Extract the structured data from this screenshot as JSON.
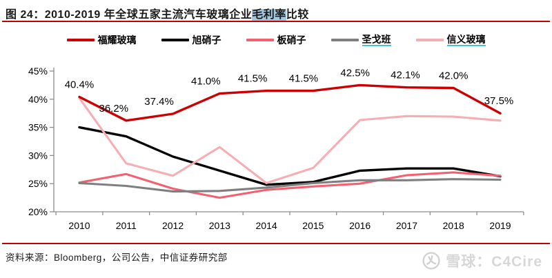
{
  "header": {
    "title_prefix": "图 24：2010-2019 年全球五家主流汽车玻璃企业",
    "title_highlight": "毛利率",
    "title_suffix": "比较",
    "rule_color": "#c30000",
    "highlight_color": "#a2c7e0"
  },
  "legend": {
    "items": [
      {
        "label": "福耀玻璃",
        "color": "#cc0000",
        "underline": false
      },
      {
        "label": "旭硝子",
        "color": "#000000",
        "underline": false
      },
      {
        "label": "板硝子",
        "color": "#f4606f",
        "underline": false
      },
      {
        "label": "圣戈班",
        "color": "#7f7f7f",
        "underline": true
      },
      {
        "label": "信义玻璃",
        "color": "#f7aeb2",
        "underline": true
      }
    ],
    "underline_color": "#47c2d4"
  },
  "chart_data": {
    "type": "line",
    "title": "2010-2019 年全球五家主流汽车玻璃企业毛利率比较",
    "categories": [
      "2010",
      "2011",
      "2012",
      "2013",
      "2014",
      "2015",
      "2016",
      "2017",
      "2018",
      "2019"
    ],
    "series": [
      {
        "name": "旭硝子",
        "color": "#000000",
        "stroke_width": 3.4,
        "values": [
          35.0,
          33.4,
          29.8,
          27.3,
          24.8,
          25.3,
          27.3,
          27.7,
          27.7,
          26.3
        ]
      },
      {
        "name": "板硝子",
        "color": "#f4606f",
        "stroke_width": 3.1,
        "values": [
          25.2,
          26.7,
          24.1,
          22.5,
          23.9,
          24.5,
          25.0,
          26.5,
          27.0,
          26.4
        ]
      },
      {
        "name": "圣戈班",
        "color": "#7f7f7f",
        "stroke_width": 3.1,
        "values": [
          25.1,
          24.6,
          23.6,
          23.7,
          24.3,
          25.1,
          25.6,
          25.6,
          25.8,
          25.7
        ]
      },
      {
        "name": "信义玻璃",
        "color": "#f7aeb2",
        "stroke_width": 3.1,
        "values": [
          40.2,
          28.6,
          26.4,
          31.5,
          25.1,
          27.8,
          36.3,
          37.0,
          36.9,
          36.2
        ]
      },
      {
        "name": "福耀玻璃",
        "color": "#cc0000",
        "stroke_width": 3.4,
        "values": [
          40.4,
          36.2,
          37.4,
          41.0,
          41.5,
          41.5,
          42.5,
          42.1,
          42.0,
          37.5
        ],
        "point_labels": [
          "40.4%",
          "36.2%",
          "37.4%",
          "41.0%",
          "41.5%",
          "41.5%",
          "42.5%",
          "42.1%",
          "42.0%",
          "37.5%"
        ],
        "label_dx": [
          0,
          -18,
          -20,
          -20,
          -20,
          -14,
          -7,
          -2,
          0,
          -2
        ]
      }
    ],
    "ylim": [
      20,
      45
    ],
    "ytick_step": 5,
    "ytick_labels": [
      "45%",
      "40%",
      "35%",
      "30%",
      "25%",
      "20%"
    ],
    "xlabel": "",
    "ylabel": "",
    "grid": false,
    "legend_position": "top",
    "axis_color": "#8c8c8c"
  },
  "footer": {
    "source": "资料来源：Bloomberg，公司公告，中信证券研究部",
    "watermark": "雪球：C4Cire"
  }
}
